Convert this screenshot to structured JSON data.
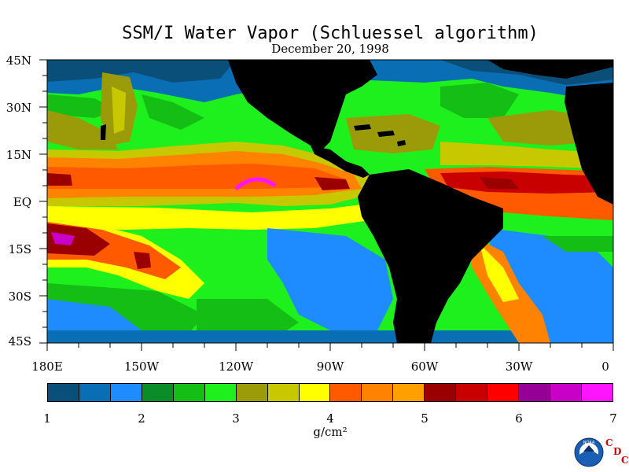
{
  "title": "SSM/I Water Vapor (Schluessel algorithm)",
  "date": "December 20, 1998",
  "lat_labels": [
    "45N",
    "30N",
    "15N",
    "EQ",
    "15S",
    "30S",
    "45S"
  ],
  "lon_labels": [
    "180E",
    "150W",
    "120W",
    "90W",
    "60W",
    "30W",
    "0"
  ],
  "colorbar": {
    "ticks": [
      "1",
      "2",
      "3",
      "4",
      "5",
      "6",
      "7"
    ],
    "units": "g/cm²",
    "colors": [
      "#0a4f7a",
      "#0a6eb4",
      "#1e8cff",
      "#0a8c28",
      "#14be14",
      "#1ef01e",
      "#9b9b0a",
      "#c8c800",
      "#ffff00",
      "#ff5a00",
      "#ff8200",
      "#ffa000",
      "#9b0000",
      "#c80000",
      "#ff0000",
      "#960096",
      "#c800c8",
      "#ff14ff"
    ]
  },
  "legend_min": 1,
  "legend_max": 7,
  "land_color": "#000000",
  "logos": {
    "noaa_text": "NOAA",
    "cdc_letters": [
      "C",
      "D",
      "C"
    ]
  }
}
